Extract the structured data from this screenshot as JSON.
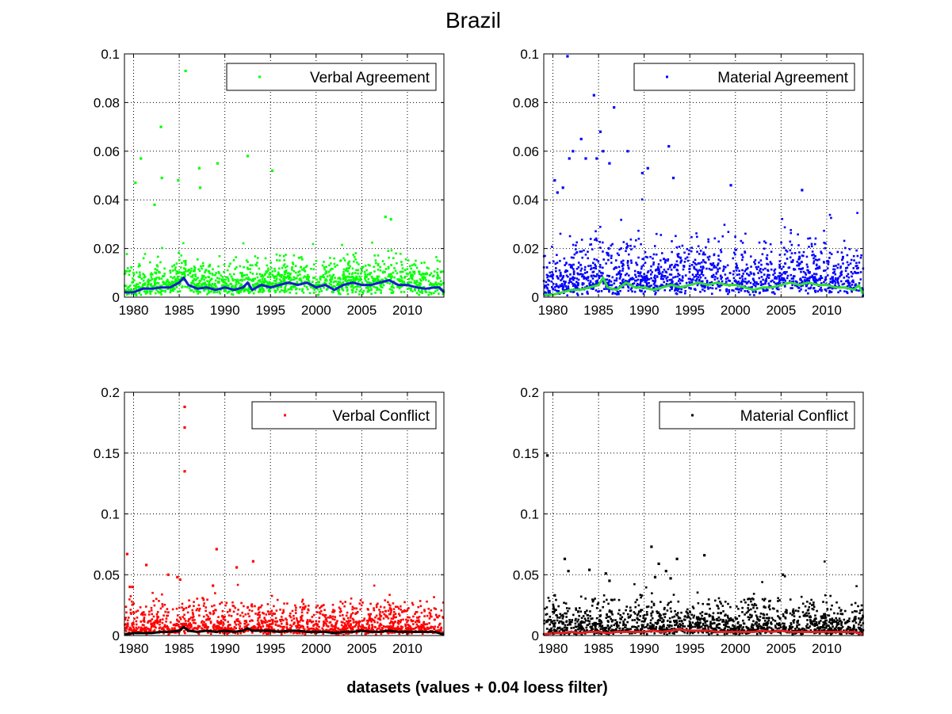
{
  "figure": {
    "title": "Brazil",
    "xlabel": "datasets (values + 0.04 loess filter)"
  },
  "chart_data": [
    {
      "type": "scatter",
      "legend": "Verbal Agreement",
      "legend_placement": "top-right",
      "grid": true,
      "xlim": [
        1979,
        2014
      ],
      "ylim": [
        0,
        0.1
      ],
      "xticks": [
        1980,
        1985,
        1990,
        1995,
        2000,
        2005,
        2010
      ],
      "yticks": [
        0,
        0.02,
        0.04,
        0.06,
        0.08,
        0.1
      ],
      "ytick_labels": [
        "0",
        "0.02",
        "0.04",
        "0.06",
        "0.08",
        "0.1"
      ],
      "point_color": "#00ff00",
      "trend_color": "#1a1ad0",
      "trend": [
        [
          1979,
          0.002
        ],
        [
          1980,
          0.002
        ],
        [
          1981,
          0.0035
        ],
        [
          1982,
          0.0035
        ],
        [
          1983,
          0.004
        ],
        [
          1984,
          0.004
        ],
        [
          1985,
          0.006
        ],
        [
          1985.5,
          0.008
        ],
        [
          1986,
          0.005
        ],
        [
          1987,
          0.0035
        ],
        [
          1988,
          0.004
        ],
        [
          1989,
          0.003
        ],
        [
          1990,
          0.004
        ],
        [
          1991,
          0.003
        ],
        [
          1992,
          0.004
        ],
        [
          1992.5,
          0.006
        ],
        [
          1993,
          0.003
        ],
        [
          1994,
          0.005
        ],
        [
          1995,
          0.004
        ],
        [
          1996,
          0.005
        ],
        [
          1997,
          0.006
        ],
        [
          1998,
          0.005
        ],
        [
          1999,
          0.006
        ],
        [
          2000,
          0.004
        ],
        [
          2001,
          0.005
        ],
        [
          2002,
          0.003
        ],
        [
          2003,
          0.005
        ],
        [
          2004,
          0.006
        ],
        [
          2005,
          0.005
        ],
        [
          2006,
          0.005
        ],
        [
          2007,
          0.006
        ],
        [
          2008,
          0.007
        ],
        [
          2009,
          0.005
        ],
        [
          2010,
          0.005
        ],
        [
          2011,
          0.004
        ],
        [
          2012,
          0.0035
        ],
        [
          2013,
          0.004
        ],
        [
          2013.5,
          0.004
        ],
        [
          2014,
          0.002
        ]
      ],
      "outliers": [
        [
          1985.7,
          0.093
        ],
        [
          1983,
          0.07
        ],
        [
          1987.2,
          0.053
        ],
        [
          1989.2,
          0.055
        ],
        [
          1992.5,
          0.058
        ],
        [
          1995.2,
          0.052
        ],
        [
          1980.8,
          0.057
        ],
        [
          1984.9,
          0.048
        ],
        [
          1983.1,
          0.049
        ],
        [
          1982.3,
          0.038
        ],
        [
          1980.2,
          0.047
        ],
        [
          1987.3,
          0.045
        ],
        [
          2007.6,
          0.033
        ],
        [
          2008.2,
          0.032
        ]
      ],
      "dense_base": 0.009
    },
    {
      "type": "scatter",
      "legend": "Material Agreement",
      "legend_placement": "top-right",
      "grid": true,
      "xlim": [
        1979,
        2014
      ],
      "ylim": [
        0,
        0.1
      ],
      "xticks": [
        1980,
        1985,
        1990,
        1995,
        2000,
        2005,
        2010
      ],
      "yticks": [
        0,
        0.02,
        0.04,
        0.06,
        0.08,
        0.1
      ],
      "ytick_labels": [
        "0",
        "0.02",
        "0.04",
        "0.06",
        "0.08",
        "0.1"
      ],
      "point_color": "#0000ff",
      "trend_color": "#33dd33",
      "trend": [
        [
          1979,
          0.001
        ],
        [
          1980,
          0.001
        ],
        [
          1981,
          0.002
        ],
        [
          1982,
          0.003
        ],
        [
          1983,
          0.003
        ],
        [
          1984,
          0.004
        ],
        [
          1985,
          0.005
        ],
        [
          1985.5,
          0.008
        ],
        [
          1986,
          0.004
        ],
        [
          1987,
          0.003
        ],
        [
          1988,
          0.006
        ],
        [
          1989,
          0.004
        ],
        [
          1990,
          0.004
        ],
        [
          1991,
          0.003
        ],
        [
          1992,
          0.004
        ],
        [
          1993,
          0.005
        ],
        [
          1994,
          0.004
        ],
        [
          1995,
          0.005
        ],
        [
          1996,
          0.006
        ],
        [
          1997,
          0.005
        ],
        [
          1998,
          0.006
        ],
        [
          1999,
          0.005
        ],
        [
          2000,
          0.005
        ],
        [
          2001,
          0.004
        ],
        [
          2002,
          0.003
        ],
        [
          2003,
          0.004
        ],
        [
          2004,
          0.004
        ],
        [
          2005,
          0.005
        ],
        [
          2006,
          0.006
        ],
        [
          2007,
          0.005
        ],
        [
          2008,
          0.006
        ],
        [
          2009,
          0.005
        ],
        [
          2010,
          0.005
        ],
        [
          2011,
          0.004
        ],
        [
          2012,
          0.004
        ],
        [
          2013,
          0.003
        ],
        [
          2013.5,
          0.005
        ],
        [
          2014,
          0.001
        ]
      ],
      "outliers": [
        [
          1981.6,
          0.099
        ],
        [
          1984.5,
          0.083
        ],
        [
          1986.7,
          0.078
        ],
        [
          1985.2,
          0.068
        ],
        [
          1983.1,
          0.065
        ],
        [
          1992.7,
          0.062
        ],
        [
          1982.2,
          0.06
        ],
        [
          1988.2,
          0.06
        ],
        [
          1981.8,
          0.057
        ],
        [
          1984.8,
          0.057
        ],
        [
          1983.6,
          0.057
        ],
        [
          1986.2,
          0.055
        ],
        [
          1985.5,
          0.06
        ],
        [
          1989.8,
          0.051
        ],
        [
          1990.4,
          0.053
        ],
        [
          1993.2,
          0.049
        ],
        [
          1999.5,
          0.046
        ],
        [
          1980.2,
          0.048
        ],
        [
          1980.5,
          0.043
        ],
        [
          2007.3,
          0.044
        ],
        [
          1981.1,
          0.045
        ]
      ],
      "dense_base": 0.015
    },
    {
      "type": "scatter",
      "legend": "Verbal Conflict",
      "legend_placement": "top-right",
      "grid": true,
      "xlim": [
        1979,
        2014
      ],
      "ylim": [
        0,
        0.2
      ],
      "xticks": [
        1980,
        1985,
        1990,
        1995,
        2000,
        2005,
        2010
      ],
      "yticks": [
        0,
        0.05,
        0.1,
        0.15,
        0.2
      ],
      "ytick_labels": [
        "0",
        "0.05",
        "0.1",
        "0.15",
        "0.2"
      ],
      "point_color": "#ff0000",
      "trend_color": "#000000",
      "trend": [
        [
          1979,
          0.001
        ],
        [
          1980,
          0.002
        ],
        [
          1981,
          0.002
        ],
        [
          1982,
          0.002
        ],
        [
          1983,
          0.003
        ],
        [
          1984,
          0.003
        ],
        [
          1985,
          0.004
        ],
        [
          1985.5,
          0.007
        ],
        [
          1986,
          0.004
        ],
        [
          1987,
          0.003
        ],
        [
          1988,
          0.004
        ],
        [
          1989,
          0.003
        ],
        [
          1990,
          0.004
        ],
        [
          1991,
          0.003
        ],
        [
          1992,
          0.004
        ],
        [
          1992.5,
          0.006
        ],
        [
          1993,
          0.004
        ],
        [
          1994,
          0.004
        ],
        [
          1995,
          0.004
        ],
        [
          1996,
          0.003
        ],
        [
          1997,
          0.004
        ],
        [
          1998,
          0.004
        ],
        [
          1999,
          0.003
        ],
        [
          2000,
          0.003
        ],
        [
          2001,
          0.003
        ],
        [
          2002,
          0.002
        ],
        [
          2003,
          0.003
        ],
        [
          2004,
          0.003
        ],
        [
          2005,
          0.004
        ],
        [
          2006,
          0.003
        ],
        [
          2007,
          0.003
        ],
        [
          2008,
          0.004
        ],
        [
          2009,
          0.003
        ],
        [
          2010,
          0.003
        ],
        [
          2011,
          0.003
        ],
        [
          2012,
          0.003
        ],
        [
          2013,
          0.003
        ],
        [
          2014,
          0.001
        ]
      ],
      "outliers": [
        [
          1985.6,
          0.188
        ],
        [
          1985.6,
          0.171
        ],
        [
          1985.6,
          0.135
        ],
        [
          1989.1,
          0.071
        ],
        [
          1979.3,
          0.067
        ],
        [
          1981.4,
          0.058
        ],
        [
          1983.8,
          0.05
        ],
        [
          1991.3,
          0.056
        ],
        [
          1993.1,
          0.061
        ],
        [
          1979.6,
          0.04
        ],
        [
          1979.9,
          0.04
        ],
        [
          1984.8,
          0.048
        ],
        [
          1985.1,
          0.046
        ],
        [
          1988.7,
          0.041
        ]
      ],
      "dense_base": 0.018
    },
    {
      "type": "scatter",
      "legend": "Material Conflict",
      "legend_placement": "top-right",
      "grid": true,
      "xlim": [
        1979,
        2014
      ],
      "ylim": [
        0,
        0.2
      ],
      "xticks": [
        1980,
        1985,
        1990,
        1995,
        2000,
        2005,
        2010
      ],
      "yticks": [
        0,
        0.05,
        0.1,
        0.15,
        0.2
      ],
      "ytick_labels": [
        "0",
        "0.05",
        "0.1",
        "0.15",
        "0.2"
      ],
      "point_color": "#000000",
      "trend_color": "#e02020",
      "trend": [
        [
          1979,
          0.001
        ],
        [
          1980,
          0.002
        ],
        [
          1981,
          0.002
        ],
        [
          1982,
          0.003
        ],
        [
          1983,
          0.002
        ],
        [
          1984,
          0.003
        ],
        [
          1985,
          0.003
        ],
        [
          1986,
          0.002
        ],
        [
          1987,
          0.003
        ],
        [
          1988,
          0.003
        ],
        [
          1989,
          0.003
        ],
        [
          1990,
          0.003
        ],
        [
          1991,
          0.004
        ],
        [
          1992,
          0.003
        ],
        [
          1993,
          0.004
        ],
        [
          1994,
          0.005
        ],
        [
          1995,
          0.004
        ],
        [
          1996,
          0.004
        ],
        [
          1997,
          0.004
        ],
        [
          1998,
          0.003
        ],
        [
          1999,
          0.003
        ],
        [
          2000,
          0.003
        ],
        [
          2001,
          0.003
        ],
        [
          2002,
          0.003
        ],
        [
          2003,
          0.004
        ],
        [
          2004,
          0.003
        ],
        [
          2005,
          0.004
        ],
        [
          2006,
          0.003
        ],
        [
          2007,
          0.003
        ],
        [
          2008,
          0.003
        ],
        [
          2009,
          0.003
        ],
        [
          2010,
          0.003
        ],
        [
          2011,
          0.003
        ],
        [
          2012,
          0.003
        ],
        [
          2013,
          0.003
        ],
        [
          2014,
          0.001
        ]
      ],
      "outliers": [
        [
          1979.4,
          0.148
        ],
        [
          1990.8,
          0.073
        ],
        [
          1996.6,
          0.066
        ],
        [
          1981.3,
          0.063
        ],
        [
          1993.6,
          0.063
        ],
        [
          1991.6,
          0.059
        ],
        [
          1984,
          0.054
        ],
        [
          1981.7,
          0.053
        ],
        [
          1985.8,
          0.051
        ],
        [
          1992.4,
          0.053
        ],
        [
          2005.2,
          0.05
        ],
        [
          1991.2,
          0.048
        ],
        [
          1992.9,
          0.047
        ],
        [
          1986.2,
          0.045
        ],
        [
          1980.2,
          0.033
        ]
      ],
      "dense_base": 0.02
    }
  ]
}
